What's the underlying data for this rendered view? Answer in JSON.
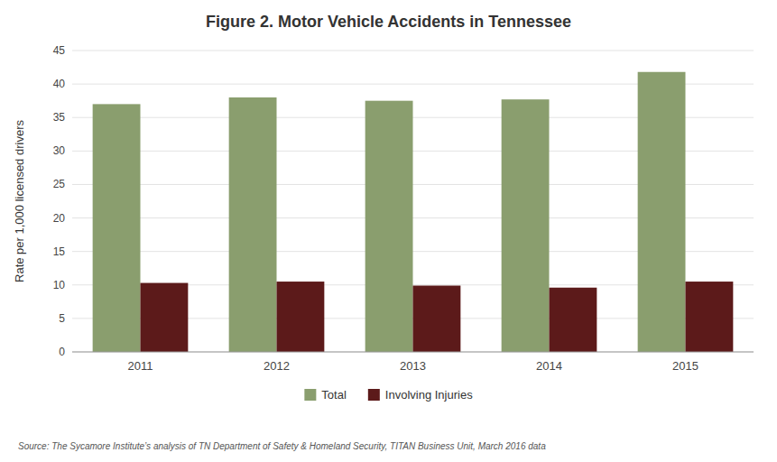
{
  "chart_data": {
    "type": "bar",
    "title": "Figure 2. Motor Vehicle Accidents in Tennessee",
    "ylabel": "Rate per 1,000 licensed drivers",
    "source": "Source: The Sycamore Institute’s analysis of TN Department of Safety & Homeland Security, TITAN Business Unit, March 2016 data",
    "categories": [
      "2011",
      "2012",
      "2013",
      "2014",
      "2015"
    ],
    "series": [
      {
        "name": "Total",
        "color": "#8A9E6E",
        "values": [
          37.0,
          38.0,
          37.5,
          37.7,
          41.8
        ]
      },
      {
        "name": "Involving Injuries",
        "color": "#5C1A1A",
        "values": [
          10.3,
          10.5,
          9.9,
          9.6,
          10.5
        ]
      }
    ],
    "ylim": [
      0,
      45
    ],
    "yticks": [
      0,
      5,
      10,
      15,
      20,
      25,
      30,
      35,
      40,
      45
    ],
    "grid": true,
    "legend": "bottom"
  }
}
